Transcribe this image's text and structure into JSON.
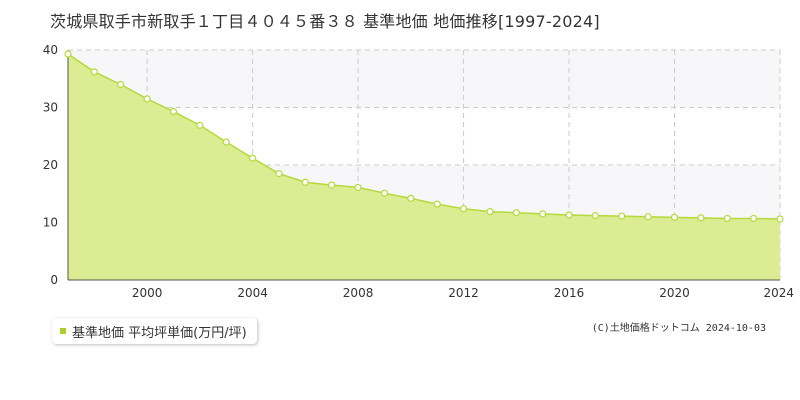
{
  "title": "茨城県取手市新取手１丁目４０４５番３８ 基準地価 地価推移[1997-2024]",
  "legend_label": "基準地価 平均坪単価(万円/坪)",
  "credit": "(C)土地価格ドットコム 2024-10-03",
  "colors": {
    "fill": "#dcec93",
    "line": "#b5d93a",
    "marker_fill": "#ffffff",
    "marker_stroke": "#b5d93a",
    "grid": "#cccccc",
    "band": "#f7f7f9",
    "legend_swatch": "#a8cf2e"
  },
  "chart_data": {
    "type": "area",
    "x": [
      1997,
      1998,
      1999,
      2000,
      2001,
      2002,
      2003,
      2004,
      2005,
      2006,
      2007,
      2008,
      2009,
      2010,
      2011,
      2012,
      2013,
      2014,
      2015,
      2016,
      2017,
      2018,
      2019,
      2020,
      2021,
      2022,
      2023,
      2024
    ],
    "series": [
      {
        "name": "基準地価 平均坪単価(万円/坪)",
        "values": [
          39.3,
          36.2,
          34.0,
          31.5,
          29.3,
          26.9,
          24.0,
          21.2,
          18.5,
          17.0,
          16.5,
          16.1,
          15.1,
          14.2,
          13.2,
          12.4,
          11.9,
          11.7,
          11.5,
          11.3,
          11.2,
          11.1,
          11.0,
          10.9,
          10.8,
          10.7,
          10.7,
          10.6
        ]
      }
    ],
    "xticks": [
      2000,
      2004,
      2008,
      2012,
      2016,
      2020,
      2024
    ],
    "yticks": [
      0,
      10,
      20,
      30,
      40
    ],
    "xlim": [
      1997,
      2024
    ],
    "ylim": [
      0,
      40
    ],
    "grid": true,
    "legend_position": "bottom-left"
  }
}
